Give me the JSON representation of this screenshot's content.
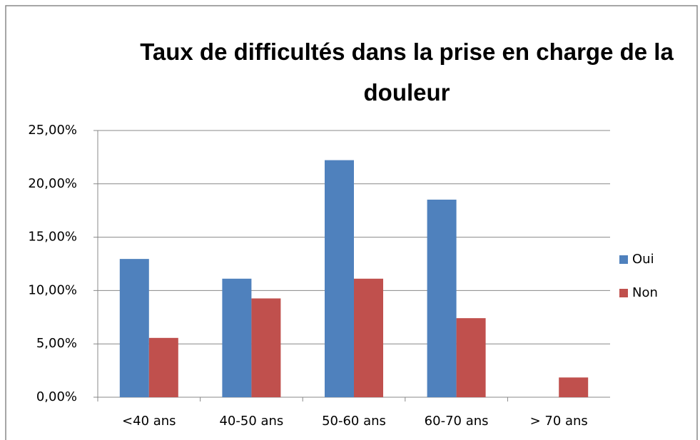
{
  "chart_data": {
    "type": "bar",
    "title": "Taux de difficultés dans la prise en charge de la douleur",
    "categories": [
      "<40 ans",
      "40-50 ans",
      "50-60 ans",
      "60-70 ans",
      "> 70 ans"
    ],
    "series": [
      {
        "name": "Oui",
        "color": "#4f81bd",
        "values": [
          12.96,
          11.11,
          22.22,
          18.52,
          0
        ]
      },
      {
        "name": "Non",
        "color": "#c0504d",
        "values": [
          5.56,
          9.26,
          11.11,
          7.41,
          1.85
        ]
      }
    ],
    "ylim": [
      0,
      25
    ],
    "yticks": [
      {
        "value": 0,
        "label": "0,00%"
      },
      {
        "value": 5,
        "label": "5,00%"
      },
      {
        "value": 10,
        "label": "10,00%"
      },
      {
        "value": 15,
        "label": "15,00%"
      },
      {
        "value": 20,
        "label": "20,00%"
      },
      {
        "value": 25,
        "label": "25,00%"
      }
    ],
    "grid": true,
    "legend": "right"
  }
}
